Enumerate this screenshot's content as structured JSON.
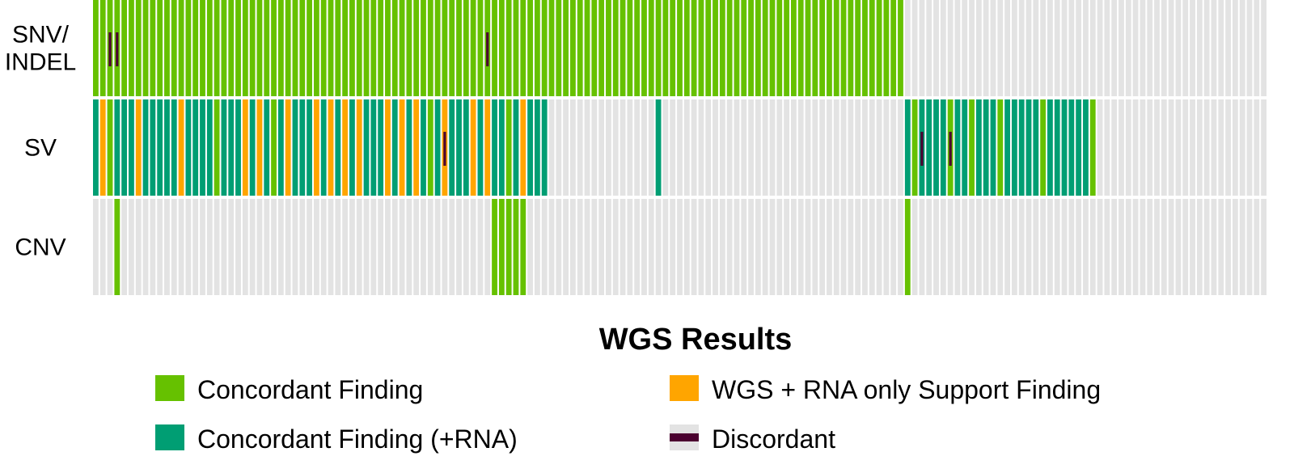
{
  "chart_data": {
    "type": "heatmap",
    "n_samples": 165,
    "rows": [
      {
        "label": "SNV/ INDEL",
        "label_lines": [
          "SNV/",
          "INDEL"
        ],
        "segments": [
          {
            "start": 0,
            "end": 113,
            "category": "concordant"
          },
          {
            "start": 114,
            "end": 164,
            "category": "background"
          }
        ],
        "discordant_marks": [
          2,
          3,
          55
        ]
      },
      {
        "label": "SV",
        "label_lines": [
          "SV"
        ],
        "segments": [
          {
            "start": 0,
            "end": 0,
            "category": "rna"
          },
          {
            "start": 1,
            "end": 1,
            "category": "wgs_rna"
          },
          {
            "start": 2,
            "end": 2,
            "category": "concordant"
          },
          {
            "start": 3,
            "end": 5,
            "category": "rna"
          },
          {
            "start": 6,
            "end": 6,
            "category": "wgs_rna"
          },
          {
            "start": 7,
            "end": 11,
            "category": "rna"
          },
          {
            "start": 12,
            "end": 12,
            "category": "wgs_rna"
          },
          {
            "start": 13,
            "end": 16,
            "category": "rna"
          },
          {
            "start": 17,
            "end": 17,
            "category": "concordant"
          },
          {
            "start": 18,
            "end": 20,
            "category": "rna"
          },
          {
            "start": 21,
            "end": 21,
            "category": "wgs_rna"
          },
          {
            "start": 22,
            "end": 22,
            "category": "rna"
          },
          {
            "start": 23,
            "end": 23,
            "category": "wgs_rna"
          },
          {
            "start": 24,
            "end": 24,
            "category": "rna"
          },
          {
            "start": 25,
            "end": 25,
            "category": "concordant"
          },
          {
            "start": 26,
            "end": 26,
            "category": "rna"
          },
          {
            "start": 27,
            "end": 27,
            "category": "wgs_rna"
          },
          {
            "start": 28,
            "end": 30,
            "category": "rna"
          },
          {
            "start": 31,
            "end": 31,
            "category": "wgs_rna"
          },
          {
            "start": 32,
            "end": 32,
            "category": "rna"
          },
          {
            "start": 33,
            "end": 33,
            "category": "wgs_rna"
          },
          {
            "start": 34,
            "end": 34,
            "category": "rna"
          },
          {
            "start": 35,
            "end": 35,
            "category": "wgs_rna"
          },
          {
            "start": 36,
            "end": 36,
            "category": "rna"
          },
          {
            "start": 37,
            "end": 37,
            "category": "wgs_rna"
          },
          {
            "start": 38,
            "end": 40,
            "category": "rna"
          },
          {
            "start": 41,
            "end": 41,
            "category": "wgs_rna"
          },
          {
            "start": 42,
            "end": 42,
            "category": "rna"
          },
          {
            "start": 43,
            "end": 43,
            "category": "wgs_rna"
          },
          {
            "start": 44,
            "end": 44,
            "category": "rna"
          },
          {
            "start": 45,
            "end": 45,
            "category": "wgs_rna"
          },
          {
            "start": 46,
            "end": 46,
            "category": "rna"
          },
          {
            "start": 47,
            "end": 47,
            "category": "concordant"
          },
          {
            "start": 48,
            "end": 48,
            "category": "rna"
          },
          {
            "start": 49,
            "end": 49,
            "category": "wgs_rna"
          },
          {
            "start": 50,
            "end": 52,
            "category": "rna"
          },
          {
            "start": 53,
            "end": 53,
            "category": "wgs_rna"
          },
          {
            "start": 54,
            "end": 54,
            "category": "rna"
          },
          {
            "start": 55,
            "end": 55,
            "category": "wgs_rna"
          },
          {
            "start": 56,
            "end": 57,
            "category": "rna"
          },
          {
            "start": 58,
            "end": 58,
            "category": "concordant"
          },
          {
            "start": 59,
            "end": 59,
            "category": "rna"
          },
          {
            "start": 60,
            "end": 60,
            "category": "wgs_rna"
          },
          {
            "start": 61,
            "end": 63,
            "category": "rna"
          },
          {
            "start": 64,
            "end": 78,
            "category": "background"
          },
          {
            "start": 79,
            "end": 79,
            "category": "rna"
          },
          {
            "start": 80,
            "end": 113,
            "category": "background"
          },
          {
            "start": 114,
            "end": 114,
            "category": "rna"
          },
          {
            "start": 115,
            "end": 115,
            "category": "concordant"
          },
          {
            "start": 116,
            "end": 119,
            "category": "rna"
          },
          {
            "start": 120,
            "end": 120,
            "category": "concordant"
          },
          {
            "start": 121,
            "end": 122,
            "category": "rna"
          },
          {
            "start": 123,
            "end": 123,
            "category": "concordant"
          },
          {
            "start": 124,
            "end": 126,
            "category": "rna"
          },
          {
            "start": 127,
            "end": 127,
            "category": "concordant"
          },
          {
            "start": 128,
            "end": 132,
            "category": "rna"
          },
          {
            "start": 133,
            "end": 133,
            "category": "concordant"
          },
          {
            "start": 134,
            "end": 139,
            "category": "rna"
          },
          {
            "start": 140,
            "end": 140,
            "category": "concordant"
          },
          {
            "start": 141,
            "end": 164,
            "category": "background"
          }
        ],
        "discordant_marks": [
          49,
          116,
          120
        ]
      },
      {
        "label": "CNV",
        "label_lines": [
          "CNV"
        ],
        "segments": [
          {
            "start": 0,
            "end": 2,
            "category": "background"
          },
          {
            "start": 3,
            "end": 3,
            "category": "concordant"
          },
          {
            "start": 4,
            "end": 55,
            "category": "background"
          },
          {
            "start": 56,
            "end": 60,
            "category": "concordant"
          },
          {
            "start": 61,
            "end": 113,
            "category": "background"
          },
          {
            "start": 114,
            "end": 114,
            "category": "concordant"
          },
          {
            "start": 115,
            "end": 164,
            "category": "background"
          }
        ],
        "discordant_marks": []
      }
    ],
    "legend": {
      "title": "WGS Results",
      "entries": [
        {
          "key": "concordant",
          "label": "Concordant Finding",
          "color": "#66c100"
        },
        {
          "key": "rna",
          "label": "Concordant Finding (+RNA)",
          "color": "#009e73"
        },
        {
          "key": "wgs_rna",
          "label": "WGS + RNA only Support Finding",
          "color": "#ffa500"
        },
        {
          "key": "discordant",
          "label": "Discordant",
          "color": "#4b0030"
        }
      ]
    },
    "colors": {
      "concordant": "#66c100",
      "rna": "#009e73",
      "wgs_rna": "#ffa500",
      "background": "#e3e3e3",
      "discordant": "#4b0030",
      "separator": "#ffffff"
    }
  }
}
